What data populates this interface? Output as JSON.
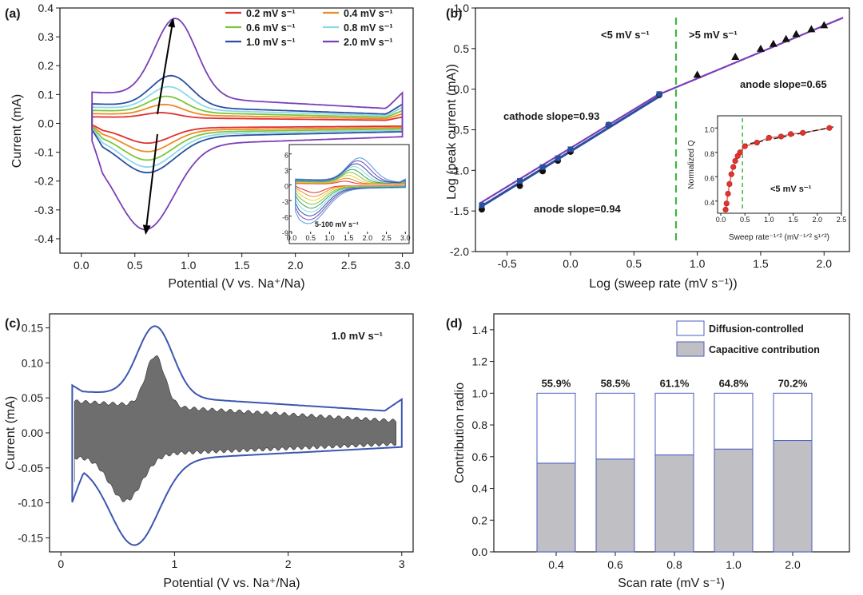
{
  "panels": {
    "a": {
      "label": "(a)",
      "xlabel": "Potential (V vs. Na⁺/Na)",
      "ylabel": "Current (mA)",
      "xlim": [
        -0.2,
        3.1
      ],
      "ylim": [
        -0.45,
        0.4
      ],
      "xticks": [
        "0.0",
        "0.5",
        "1.0",
        "1.5",
        "2.0",
        "2.5",
        "3.0"
      ],
      "yticks": [
        "-0.4",
        "-0.3",
        "-0.2",
        "-0.1",
        "0.0",
        "0.1",
        "0.2",
        "0.3",
        "0.4"
      ],
      "legend": [
        {
          "label": "0.2 mV s⁻¹",
          "color": "#e03030"
        },
        {
          "label": "0.4 mV s⁻¹",
          "color": "#f08a24"
        },
        {
          "label": "0.6 mV s⁻¹",
          "color": "#7cc63a"
        },
        {
          "label": "0.8 mV s⁻¹",
          "color": "#8cd9e6"
        },
        {
          "label": "1.0 mV s⁻¹",
          "color": "#2a4fa0"
        },
        {
          "label": "2.0 mV s⁻¹",
          "color": "#7a3fb8"
        }
      ],
      "inset": {
        "annotation": "5-100 mV s⁻¹",
        "xticks": [
          "0.0",
          "0.5",
          "1.0",
          "1.5",
          "2.0",
          "2.5",
          "3.0"
        ],
        "yticks": [
          "6",
          "3",
          "0",
          "-3",
          "-6",
          "-9"
        ]
      }
    },
    "b": {
      "label": "(b)",
      "xlabel": "Log (sweep rate (mV s⁻¹))",
      "ylabel": "Log (peak current (mA))",
      "xticks": [
        "-0.5",
        "0.0",
        "0.5",
        "1.0",
        "1.5",
        "2.0"
      ],
      "yticks": [
        "-2.0",
        "-1.5",
        "-1.0",
        "-0.5",
        "0.0",
        "0.5",
        "1.0"
      ],
      "annotations": {
        "left_region": "<5 mV s⁻¹",
        "right_region": ">5 mV s⁻¹",
        "cathode_slope": "cathode slope=0.93",
        "anode_slope_low": "anode slope=0.94",
        "anode_slope_high": "anode slope=0.65"
      },
      "inset": {
        "xlabel": "Sweep rate⁻¹ᐟ² (mV⁻¹ᐟ² s¹ᐟ²)",
        "ylabel": "Normalized Q",
        "annotation": "<5 mV s⁻¹",
        "xticks": [
          "0.0",
          "0.5",
          "1.0",
          "1.5",
          "2.0",
          "2.5"
        ],
        "yticks": [
          "0.4",
          "0.6",
          "0.8",
          "1.0"
        ]
      }
    },
    "c": {
      "label": "(c)",
      "xlabel": "Potential (V vs. Na⁺/Na)",
      "ylabel": "Current (mA)",
      "annotation": "1.0 mV s⁻¹",
      "xticks": [
        "0",
        "1",
        "2",
        "3"
      ],
      "yticks": [
        "-0.15",
        "-0.10",
        "-0.05",
        "0.00",
        "0.05",
        "0.10",
        "0.15"
      ]
    },
    "d": {
      "label": "(d)",
      "xlabel": "Scan rate (mV s⁻¹)",
      "ylabel": "Contribution radio",
      "yticks": [
        "0.0",
        "0.2",
        "0.4",
        "0.6",
        "0.8",
        "1.0",
        "1.2",
        "1.4"
      ],
      "legend": [
        {
          "label": "Diffusion-controlled",
          "color": "#ffffff"
        },
        {
          "label": "Capacitive contribution",
          "color": "#c0bfc4"
        }
      ]
    }
  },
  "colors": {
    "axis": "#1a1a1a",
    "cathode_fit": "#2a4fa0",
    "anode_fit": "#7a3fb8",
    "divider": "#3cb83c",
    "bar_outline": "#4a5fc1",
    "bar_fill": "#c0bfc4",
    "fill_c": "#6e6e6e",
    "curve_c": "#3a56b0",
    "inset_points": "#e0342c"
  },
  "chart_data": [
    {
      "panel": "a",
      "type": "line",
      "x_range": [
        0.1,
        3.0
      ],
      "ylim": [
        -0.45,
        0.4
      ],
      "series": [
        {
          "name": "0.2 mV s⁻¹",
          "anodic_peak": [
            0.75,
            0.04
          ],
          "cathodic_peak": [
            0.62,
            -0.07
          ]
        },
        {
          "name": "0.4 mV s⁻¹",
          "anodic_peak": [
            0.78,
            0.07
          ],
          "cathodic_peak": [
            0.62,
            -0.1
          ]
        },
        {
          "name": "0.6 mV s⁻¹",
          "anodic_peak": [
            0.8,
            0.1
          ],
          "cathodic_peak": [
            0.62,
            -0.13
          ]
        },
        {
          "name": "0.8 mV s⁻¹",
          "anodic_peak": [
            0.82,
            0.135
          ],
          "cathodic_peak": [
            0.62,
            -0.155
          ]
        },
        {
          "name": "1.0 mV s⁻¹",
          "anodic_peak": [
            0.84,
            0.175
          ],
          "cathodic_peak": [
            0.62,
            -0.175
          ]
        },
        {
          "name": "2.0 mV s⁻¹",
          "anodic_peak": [
            0.88,
            0.38
          ],
          "cathodic_peak": [
            0.6,
            -0.375
          ]
        }
      ]
    },
    {
      "panel": "b",
      "type": "scatter",
      "xlim": [
        -0.75,
        2.2
      ],
      "ylim": [
        -2.0,
        1.0
      ],
      "series": [
        {
          "name": "cathode",
          "marker": "circle",
          "x": [
            -0.7,
            -0.4,
            -0.22,
            -0.1,
            0.0,
            0.3,
            0.7
          ],
          "y": [
            -1.48,
            -1.19,
            -1.01,
            -0.88,
            -0.77,
            -0.44,
            -0.07
          ]
        },
        {
          "name": "anode",
          "marker": "square",
          "x": [
            -0.7,
            -0.4,
            -0.22,
            -0.1,
            0.0,
            0.3,
            0.7
          ],
          "y": [
            -1.43,
            -1.13,
            -0.96,
            -0.85,
            -0.74,
            -0.44,
            -0.06
          ]
        },
        {
          "name": "anode >5",
          "marker": "triangle",
          "x": [
            1.0,
            1.3,
            1.5,
            1.6,
            1.7,
            1.78,
            1.9,
            2.0
          ],
          "y": [
            0.18,
            0.4,
            0.5,
            0.56,
            0.62,
            0.68,
            0.74,
            0.79
          ]
        }
      ],
      "divider_x": 0.7,
      "inset": {
        "type": "scatter",
        "xlim": [
          0,
          2.5
        ],
        "ylim": [
          0.3,
          1.1
        ],
        "divider_x": 0.45,
        "x": [
          0.1,
          0.12,
          0.15,
          0.18,
          0.22,
          0.26,
          0.3,
          0.35,
          0.4,
          0.5,
          0.75,
          1.0,
          1.25,
          1.45,
          1.7,
          2.25
        ],
        "y": [
          0.33,
          0.38,
          0.46,
          0.54,
          0.62,
          0.68,
          0.73,
          0.77,
          0.8,
          0.85,
          0.88,
          0.92,
          0.93,
          0.95,
          0.96,
          1.0
        ]
      }
    },
    {
      "panel": "c",
      "type": "area",
      "xlim": [
        -0.1,
        3.1
      ],
      "ylim": [
        -0.17,
        0.17
      ],
      "annotation": "1.0 mV s⁻¹",
      "cv_peaks": {
        "anodic": [
          0.83,
          0.157
        ],
        "cathodic": [
          0.65,
          -0.165
        ]
      },
      "capacitive_peaks": {
        "anodic": [
          0.83,
          0.118
        ],
        "cathodic": [
          0.57,
          -0.103
        ]
      }
    },
    {
      "panel": "d",
      "type": "bar",
      "categories": [
        "0.4",
        "0.6",
        "0.8",
        "1.0",
        "2.0"
      ],
      "series": [
        {
          "name": "Capacitive contribution",
          "values": [
            0.559,
            0.585,
            0.611,
            0.648,
            0.702
          ]
        },
        {
          "name": "Diffusion-controlled",
          "values": [
            0.441,
            0.415,
            0.389,
            0.352,
            0.298
          ]
        }
      ],
      "labels": [
        "55.9%",
        "58.5%",
        "61.1%",
        "64.8%",
        "70.2%"
      ],
      "ylim": [
        0.0,
        1.5
      ]
    }
  ]
}
